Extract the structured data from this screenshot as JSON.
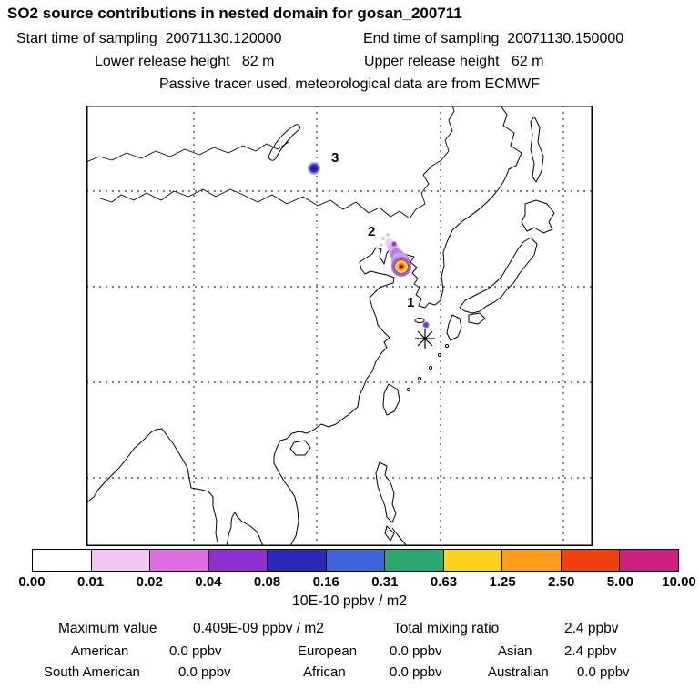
{
  "header": {
    "title": "SO2 source contributions in nested domain for gosan_200711",
    "start_time_label": "Start time of sampling",
    "start_time_value": "20071130.120000",
    "end_time_label": "End time of sampling",
    "end_time_value": "20071130.150000",
    "lower_release_label": "Lower release height",
    "lower_release_value": "82 m",
    "upper_release_label": "Upper release height",
    "upper_release_value": "62 m",
    "tracer_note": "Passive tracer used, meteorological data are from ECMWF"
  },
  "map": {
    "markers": [
      {
        "label": "1"
      },
      {
        "label": "2"
      },
      {
        "label": "3"
      }
    ],
    "receptor": {
      "station": "gosan",
      "symbol": "asterisk"
    }
  },
  "chart_data": {
    "type": "heatmap",
    "title": "SO2 source contributions in nested domain for gosan_200711",
    "units": "10E-10 ppbv / m2",
    "colorbar_ticks": [
      "0.00",
      "0.01",
      "0.02",
      "0.04",
      "0.08",
      "0.16",
      "0.31",
      "0.63",
      "1.25",
      "2.50",
      "5.00",
      "10.00"
    ],
    "colorbar_colors": [
      "#ffffff",
      "#f2c6f2",
      "#e06ee0",
      "#8f2fd0",
      "#2929b8",
      "#3e64dc",
      "#2aa66e",
      "#ffd21e",
      "#ff9c1e",
      "#f04010",
      "#cc1f7e"
    ],
    "plumes": [
      {
        "marker": "3",
        "peak_color": "#2018a0",
        "appearance": "compact blue-indigo spot in northern domain"
      },
      {
        "marker": "2",
        "peak_color": "#8c1008",
        "appearance": "main plume: red-orange core, yellow ring, violet halo with pale tail to northwest"
      },
      {
        "marker": "1",
        "peak_color": "#5a3ac8",
        "appearance": "small violet spot just north of receptor asterisk"
      }
    ],
    "maximum_value": "0.409E-09 ppbv / m2",
    "total_mixing_ratio": "2.4 ppbv",
    "contributions": [
      {
        "region": "American",
        "value": "0.0 ppbv"
      },
      {
        "region": "European",
        "value": "0.0 ppbv"
      },
      {
        "region": "Asian",
        "value": "2.4 ppbv"
      },
      {
        "region": "South American",
        "value": "0.0 ppbv"
      },
      {
        "region": "African",
        "value": "0.0 ppbv"
      },
      {
        "region": "Australian",
        "value": "0.0 ppbv"
      }
    ]
  },
  "footer": {
    "units_caption": "10E-10 ppbv / m2",
    "max_label": "Maximum value",
    "max_value": "0.409E-09 ppbv / m2",
    "total_label": "Total mixing ratio",
    "total_value": "2.4 ppbv"
  }
}
